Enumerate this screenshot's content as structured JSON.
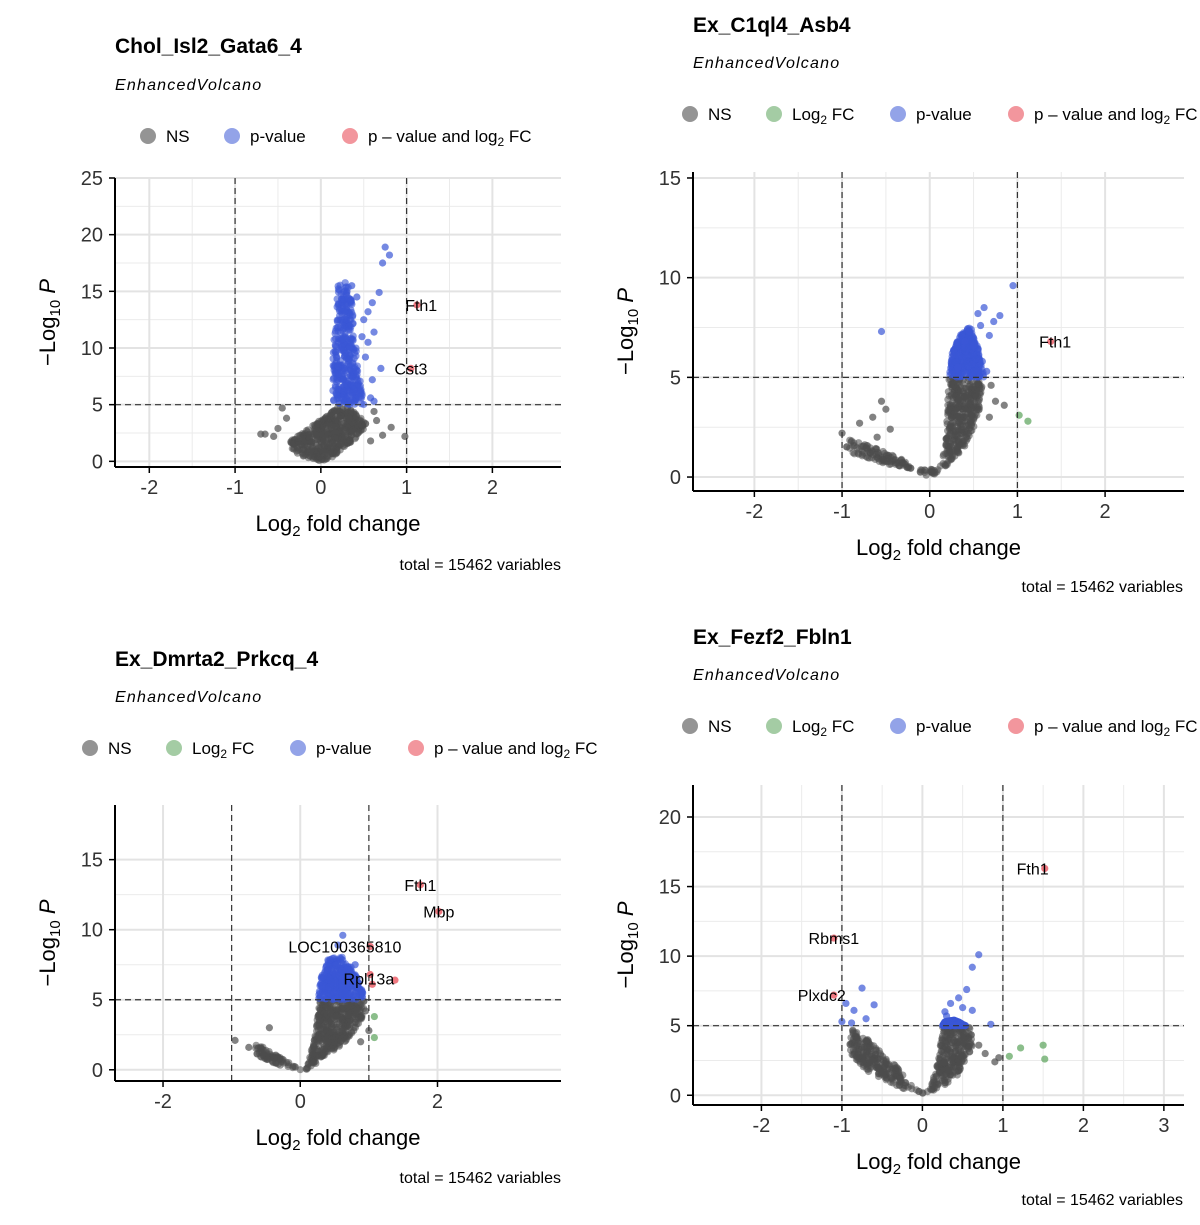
{
  "figure": {
    "footer_text": "total = 15462 variables",
    "subtitle": "EnhancedVolcano",
    "xlabel_main": "Log",
    "xlabel_sub": "2",
    "xlabel_rest": " fold change",
    "ylabel_main": "−Log",
    "ylabel_sub": "10",
    "ylabel_P": "P",
    "legend_labels": {
      "ns": "NS",
      "log2fc_main": "Log",
      "log2fc_sub": "2",
      "log2fc_rest": " FC",
      "pvalue": "p-value",
      "both_main": "p – value and log",
      "both_sub": "2",
      "both_rest": " FC"
    },
    "colors": {
      "ns": "#4d4d4d",
      "log2fc": "#5aa35a",
      "pvalue": "#3b57d6",
      "both": "#e8404c"
    }
  },
  "chart_data": [
    {
      "type": "scatter",
      "title": "Chol_Isl2_Gata6_4",
      "legend_items": [
        "ns",
        "pvalue",
        "both"
      ],
      "xlim": [
        -2.4,
        2.8
      ],
      "ylim": [
        -0.5,
        25
      ],
      "xticks": [
        -2,
        -1,
        0,
        1,
        2
      ],
      "yticks": [
        0,
        5,
        10,
        15,
        20,
        25
      ],
      "fc_cutoff": 1,
      "p_cutoff_log10": 5,
      "grid": true,
      "bulk": [
        {
          "color": "ns",
          "points": [
            [
              -0.35,
              1.8
            ],
            [
              0.25,
              5.0
            ],
            [
              0.4,
              4.3
            ],
            [
              0.55,
              3.2
            ],
            [
              0.4,
              2.0
            ],
            [
              0.12,
              0.3
            ],
            [
              0.0,
              0.0
            ],
            [
              -0.2,
              0.4
            ],
            [
              -0.35,
              1.0
            ]
          ]
        },
        {
          "color": "pvalue",
          "points": [
            [
              0.14,
              5.0
            ],
            [
              0.14,
              10.5
            ],
            [
              0.2,
              15.8
            ],
            [
              0.32,
              16.0
            ],
            [
              0.38,
              13.0
            ],
            [
              0.42,
              9.0
            ],
            [
              0.5,
              5.0
            ]
          ]
        }
      ],
      "points": [
        {
          "x": 0.75,
          "y": 18.9,
          "c": "pvalue"
        },
        {
          "x": 0.8,
          "y": 18.2,
          "c": "pvalue"
        },
        {
          "x": 0.72,
          "y": 17.5,
          "c": "pvalue"
        },
        {
          "x": 0.68,
          "y": 14.9,
          "c": "pvalue"
        },
        {
          "x": 0.6,
          "y": 14.0,
          "c": "pvalue"
        },
        {
          "x": 0.55,
          "y": 13.2,
          "c": "pvalue"
        },
        {
          "x": 0.5,
          "y": 12.5,
          "c": "pvalue"
        },
        {
          "x": 0.62,
          "y": 11.4,
          "c": "pvalue"
        },
        {
          "x": 0.55,
          "y": 10.5,
          "c": "pvalue"
        },
        {
          "x": 0.7,
          "y": 8.2,
          "c": "pvalue"
        },
        {
          "x": 0.52,
          "y": 9.2,
          "c": "pvalue"
        },
        {
          "x": 0.6,
          "y": 7.2,
          "c": "pvalue"
        },
        {
          "x": 0.46,
          "y": 6.0,
          "c": "pvalue"
        },
        {
          "x": 0.58,
          "y": 5.6,
          "c": "pvalue"
        },
        {
          "x": 0.62,
          "y": 5.3,
          "c": "pvalue"
        },
        {
          "x": 0.36,
          "y": 15.5,
          "c": "pvalue"
        },
        {
          "x": 0.42,
          "y": 14.5,
          "c": "pvalue"
        },
        {
          "x": 0.48,
          "y": 11.0,
          "c": "pvalue"
        },
        {
          "x": 1.12,
          "y": 13.8,
          "c": "both"
        },
        {
          "x": 1.05,
          "y": 8.2,
          "c": "both"
        },
        {
          "x": -0.7,
          "y": 2.4,
          "c": "ns"
        },
        {
          "x": -0.65,
          "y": 2.4,
          "c": "ns"
        },
        {
          "x": -0.5,
          "y": 2.9,
          "c": "ns"
        },
        {
          "x": -0.45,
          "y": 4.7,
          "c": "ns"
        },
        {
          "x": -0.4,
          "y": 3.8,
          "c": "ns"
        },
        {
          "x": -0.55,
          "y": 2.2,
          "c": "ns"
        },
        {
          "x": 0.65,
          "y": 3.6,
          "c": "ns"
        },
        {
          "x": 0.72,
          "y": 2.3,
          "c": "ns"
        },
        {
          "x": 0.98,
          "y": 2.2,
          "c": "ns"
        },
        {
          "x": 0.62,
          "y": 4.4,
          "c": "ns"
        },
        {
          "x": 0.82,
          "y": 3.0,
          "c": "ns"
        },
        {
          "x": 0.58,
          "y": 1.8,
          "c": "ns"
        }
      ],
      "labels": [
        {
          "text": "Fth1",
          "x": 1.12,
          "y": 13.8,
          "dx": 0.05,
          "dy": 0
        },
        {
          "text": "Cst3",
          "x": 1.05,
          "y": 8.2,
          "dx": 0.0,
          "dy": 0
        }
      ]
    },
    {
      "type": "scatter",
      "title": "Ex_C1ql4_Asb4",
      "legend_items": [
        "ns",
        "log2fc",
        "pvalue",
        "both"
      ],
      "xlim": [
        -2.7,
        2.9
      ],
      "ylim": [
        -0.7,
        15.3
      ],
      "xticks": [
        -2,
        -1,
        0,
        1,
        2
      ],
      "yticks": [
        0,
        5,
        10,
        15
      ],
      "fc_cutoff": 1,
      "p_cutoff_log10": 5,
      "grid": true,
      "bulk": [
        {
          "color": "ns",
          "points": [
            [
              -0.95,
              1.9
            ],
            [
              -0.7,
              1.6
            ],
            [
              -0.35,
              1.0
            ],
            [
              -0.1,
              0.2
            ],
            [
              0.0,
              0.0
            ],
            [
              0.08,
              0.2
            ],
            [
              0.18,
              1.5
            ],
            [
              0.22,
              5.0
            ],
            [
              0.55,
              5.0
            ],
            [
              0.6,
              4.5
            ],
            [
              0.55,
              3.0
            ],
            [
              0.4,
              1.5
            ],
            [
              0.15,
              0.4
            ],
            [
              -0.3,
              0.4
            ],
            [
              -0.7,
              0.9
            ],
            [
              -0.95,
              1.3
            ]
          ]
        },
        {
          "color": "pvalue",
          "points": [
            [
              0.22,
              5.0
            ],
            [
              0.26,
              6.3
            ],
            [
              0.36,
              7.2
            ],
            [
              0.46,
              7.6
            ],
            [
              0.55,
              6.5
            ],
            [
              0.62,
              5.0
            ]
          ]
        }
      ],
      "points": [
        {
          "x": 0.95,
          "y": 9.6,
          "c": "pvalue"
        },
        {
          "x": 0.8,
          "y": 8.1,
          "c": "pvalue"
        },
        {
          "x": 0.73,
          "y": 7.8,
          "c": "pvalue"
        },
        {
          "x": 0.62,
          "y": 8.5,
          "c": "pvalue"
        },
        {
          "x": 0.55,
          "y": 8.2,
          "c": "pvalue"
        },
        {
          "x": 0.58,
          "y": 7.6,
          "c": "pvalue"
        },
        {
          "x": 0.45,
          "y": 7.3,
          "c": "pvalue"
        },
        {
          "x": 0.68,
          "y": 7.1,
          "c": "pvalue"
        },
        {
          "x": -0.55,
          "y": 7.3,
          "c": "pvalue"
        },
        {
          "x": 0.5,
          "y": 6.6,
          "c": "pvalue"
        },
        {
          "x": 0.4,
          "y": 6.8,
          "c": "pvalue"
        },
        {
          "x": 0.65,
          "y": 5.3,
          "c": "pvalue"
        },
        {
          "x": 0.6,
          "y": 5.8,
          "c": "pvalue"
        },
        {
          "x": 0.32,
          "y": 5.5,
          "c": "pvalue"
        },
        {
          "x": 1.38,
          "y": 6.8,
          "c": "both"
        },
        {
          "x": 1.02,
          "y": 3.1,
          "c": "log2fc"
        },
        {
          "x": 1.12,
          "y": 2.8,
          "c": "log2fc"
        },
        {
          "x": -0.55,
          "y": 3.8,
          "c": "ns"
        },
        {
          "x": -0.5,
          "y": 3.4,
          "c": "ns"
        },
        {
          "x": -0.65,
          "y": 3.0,
          "c": "ns"
        },
        {
          "x": -0.8,
          "y": 2.7,
          "c": "ns"
        },
        {
          "x": -0.45,
          "y": 2.4,
          "c": "ns"
        },
        {
          "x": -1.0,
          "y": 2.2,
          "c": "ns"
        },
        {
          "x": -0.6,
          "y": 2.0,
          "c": "ns"
        },
        {
          "x": 0.7,
          "y": 4.6,
          "c": "ns"
        },
        {
          "x": 0.75,
          "y": 3.8,
          "c": "ns"
        },
        {
          "x": 0.68,
          "y": 3.0,
          "c": "ns"
        },
        {
          "x": 0.85,
          "y": 3.6,
          "c": "ns"
        }
      ],
      "labels": [
        {
          "text": "Fth1",
          "x": 1.38,
          "y": 6.8,
          "dx": 0.05,
          "dy": 0
        }
      ]
    },
    {
      "type": "scatter",
      "title": "Ex_Dmrta2_Prkcq_4",
      "legend_items": [
        "ns",
        "log2fc",
        "pvalue",
        "both"
      ],
      "xlim": [
        -2.7,
        3.8
      ],
      "ylim": [
        -0.8,
        18.9
      ],
      "xticks": [
        -2,
        0,
        2
      ],
      "yticks": [
        0,
        5,
        10,
        15
      ],
      "fc_cutoff": 1,
      "p_cutoff_log10": 5,
      "grid": true,
      "bulk": [
        {
          "color": "ns",
          "points": [
            [
              -0.65,
              1.9
            ],
            [
              -0.35,
              1.1
            ],
            [
              -0.1,
              0.3
            ],
            [
              0.0,
              0.0
            ],
            [
              0.1,
              0.3
            ],
            [
              0.22,
              2.5
            ],
            [
              0.28,
              5.0
            ],
            [
              0.95,
              5.0
            ],
            [
              0.9,
              3.6
            ],
            [
              0.7,
              2.2
            ],
            [
              0.4,
              1.0
            ],
            [
              0.1,
              0.0
            ],
            [
              -0.3,
              0.3
            ],
            [
              -0.65,
              1.1
            ]
          ]
        },
        {
          "color": "pvalue",
          "points": [
            [
              0.26,
              5.0
            ],
            [
              0.3,
              6.5
            ],
            [
              0.4,
              7.9
            ],
            [
              0.6,
              8.1
            ],
            [
              0.78,
              7.2
            ],
            [
              0.95,
              5.0
            ]
          ]
        }
      ],
      "points": [
        {
          "x": 1.75,
          "y": 13.2,
          "c": "both"
        },
        {
          "x": 2.02,
          "y": 11.3,
          "c": "both"
        },
        {
          "x": 1.02,
          "y": 8.8,
          "c": "both"
        },
        {
          "x": 1.02,
          "y": 6.8,
          "c": "both"
        },
        {
          "x": 1.05,
          "y": 6.1,
          "c": "both"
        },
        {
          "x": 1.38,
          "y": 6.4,
          "c": "both"
        },
        {
          "x": 1.08,
          "y": 3.8,
          "c": "log2fc"
        },
        {
          "x": 1.08,
          "y": 2.3,
          "c": "log2fc"
        },
        {
          "x": 0.62,
          "y": 9.6,
          "c": "pvalue"
        },
        {
          "x": 0.55,
          "y": 8.9,
          "c": "pvalue"
        },
        {
          "x": 0.8,
          "y": 7.5,
          "c": "pvalue"
        },
        {
          "x": 0.85,
          "y": 6.2,
          "c": "pvalue"
        },
        {
          "x": 0.9,
          "y": 5.6,
          "c": "pvalue"
        },
        {
          "x": -0.95,
          "y": 2.1,
          "c": "ns"
        },
        {
          "x": -0.45,
          "y": 3.0,
          "c": "ns"
        },
        {
          "x": -0.75,
          "y": 1.6,
          "c": "ns"
        },
        {
          "x": 0.95,
          "y": 4.2,
          "c": "ns"
        },
        {
          "x": 1.0,
          "y": 2.8,
          "c": "ns"
        },
        {
          "x": 0.88,
          "y": 2.0,
          "c": "ns"
        }
      ],
      "labels": [
        {
          "text": "Fth1",
          "x": 1.75,
          "y": 13.2,
          "dx": 0.0,
          "dy": 0
        },
        {
          "text": "Mbp",
          "x": 2.02,
          "y": 11.3,
          "dx": 0.0,
          "dy": 0
        },
        {
          "text": "LOC100365810",
          "x": 0.65,
          "y": 8.8,
          "dx": 0.0,
          "dy": 0
        },
        {
          "text": "Rpl13a",
          "x": 1.0,
          "y": 6.5,
          "dx": 0.0,
          "dy": 0
        }
      ]
    },
    {
      "type": "scatter",
      "title": "Ex_Fezf2_Fbln1",
      "legend_items": [
        "ns",
        "log2fc",
        "pvalue",
        "both"
      ],
      "xlim": [
        -2.85,
        3.25
      ],
      "ylim": [
        -0.7,
        22.3
      ],
      "xticks": [
        -2,
        -1,
        0,
        1,
        2,
        3
      ],
      "yticks": [
        0,
        5,
        10,
        15,
        20
      ],
      "fc_cutoff": 1,
      "p_cutoff_log10": 5,
      "grid": true,
      "bulk": [
        {
          "color": "ns",
          "points": [
            [
              -0.9,
              4.8
            ],
            [
              -0.7,
              4.2
            ],
            [
              -0.4,
              2.6
            ],
            [
              -0.15,
              0.8
            ],
            [
              0.0,
              0.0
            ],
            [
              0.1,
              0.5
            ],
            [
              0.2,
              2.5
            ],
            [
              0.25,
              5.0
            ],
            [
              0.6,
              5.0
            ],
            [
              0.62,
              3.5
            ],
            [
              0.45,
              1.5
            ],
            [
              0.15,
              0.2
            ],
            [
              -0.3,
              0.5
            ],
            [
              -0.7,
              1.8
            ],
            [
              -0.9,
              3.0
            ]
          ]
        },
        {
          "color": "pvalue",
          "points": [
            [
              0.25,
              5.0
            ],
            [
              0.28,
              5.3
            ],
            [
              0.4,
              5.4
            ],
            [
              0.55,
              5.0
            ]
          ]
        }
      ],
      "points": [
        {
          "x": 1.52,
          "y": 16.3,
          "c": "both"
        },
        {
          "x": -1.1,
          "y": 11.3,
          "c": "both"
        },
        {
          "x": -1.1,
          "y": 7.2,
          "c": "both"
        },
        {
          "x": 1.08,
          "y": 2.8,
          "c": "log2fc"
        },
        {
          "x": 1.22,
          "y": 3.4,
          "c": "log2fc"
        },
        {
          "x": 1.5,
          "y": 3.6,
          "c": "log2fc"
        },
        {
          "x": 1.52,
          "y": 2.6,
          "c": "log2fc"
        },
        {
          "x": 0.7,
          "y": 10.1,
          "c": "pvalue"
        },
        {
          "x": 0.62,
          "y": 9.2,
          "c": "pvalue"
        },
        {
          "x": 0.55,
          "y": 7.6,
          "c": "pvalue"
        },
        {
          "x": 0.45,
          "y": 7.0,
          "c": "pvalue"
        },
        {
          "x": 0.35,
          "y": 6.6,
          "c": "pvalue"
        },
        {
          "x": 0.5,
          "y": 6.3,
          "c": "pvalue"
        },
        {
          "x": 0.28,
          "y": 6.0,
          "c": "pvalue"
        },
        {
          "x": 0.62,
          "y": 6.1,
          "c": "pvalue"
        },
        {
          "x": 0.3,
          "y": 5.7,
          "c": "pvalue"
        },
        {
          "x": 0.85,
          "y": 5.1,
          "c": "pvalue"
        },
        {
          "x": -0.75,
          "y": 7.7,
          "c": "pvalue"
        },
        {
          "x": -0.95,
          "y": 6.6,
          "c": "pvalue"
        },
        {
          "x": -0.85,
          "y": 6.1,
          "c": "pvalue"
        },
        {
          "x": -0.6,
          "y": 6.5,
          "c": "pvalue"
        },
        {
          "x": -0.7,
          "y": 5.5,
          "c": "pvalue"
        },
        {
          "x": -1.0,
          "y": 5.3,
          "c": "pvalue"
        },
        {
          "x": -0.88,
          "y": 5.2,
          "c": "pvalue"
        },
        {
          "x": -0.82,
          "y": 2.8,
          "c": "ns"
        },
        {
          "x": -0.8,
          "y": 3.8,
          "c": "ns"
        },
        {
          "x": 0.7,
          "y": 3.6,
          "c": "ns"
        },
        {
          "x": 0.78,
          "y": 3.0,
          "c": "ns"
        },
        {
          "x": 0.9,
          "y": 2.4,
          "c": "ns"
        },
        {
          "x": 0.95,
          "y": 2.7,
          "c": "ns"
        }
      ],
      "labels": [
        {
          "text": "Fth1",
          "x": 1.52,
          "y": 16.3,
          "dx": -0.15,
          "dy": 0
        },
        {
          "text": "Rbms1",
          "x": -1.1,
          "y": 11.3,
          "dx": 0.0,
          "dy": 0
        },
        {
          "text": "Plxdc2",
          "x": -1.1,
          "y": 7.2,
          "dx": -0.15,
          "dy": 0
        }
      ]
    }
  ]
}
